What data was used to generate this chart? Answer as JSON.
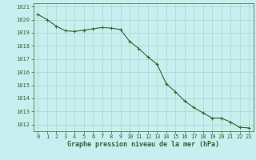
{
  "x": [
    0,
    1,
    2,
    3,
    4,
    5,
    6,
    7,
    8,
    9,
    10,
    11,
    12,
    13,
    14,
    15,
    16,
    17,
    18,
    19,
    20,
    21,
    22,
    23
  ],
  "y": [
    1020.4,
    1020.0,
    1019.5,
    1019.15,
    1019.1,
    1019.2,
    1019.3,
    1019.4,
    1019.35,
    1019.25,
    1018.35,
    1017.8,
    1017.15,
    1016.6,
    1015.1,
    1014.5,
    1013.8,
    1013.3,
    1012.9,
    1012.5,
    1012.5,
    1012.2,
    1011.8,
    1011.75
  ],
  "ylim": [
    1011.5,
    1021.25
  ],
  "xlim": [
    -0.5,
    23.5
  ],
  "yticks": [
    1012,
    1013,
    1014,
    1015,
    1016,
    1017,
    1018,
    1019,
    1020,
    1021
  ],
  "xticks": [
    0,
    1,
    2,
    3,
    4,
    5,
    6,
    7,
    8,
    9,
    10,
    11,
    12,
    13,
    14,
    15,
    16,
    17,
    18,
    19,
    20,
    21,
    22,
    23
  ],
  "line_color": "#2d6a2d",
  "marker_color": "#2d6a2d",
  "bg_color": "#c8eef0",
  "grid_color": "#a8d8c8",
  "xlabel": "Graphe pression niveau de la mer (hPa)",
  "xlabel_color": "#2d6a2d",
  "tick_color": "#2d6a2d",
  "axis_color": "#2d6a2d",
  "tick_fontsize": 5.0,
  "xlabel_fontsize": 6.0
}
